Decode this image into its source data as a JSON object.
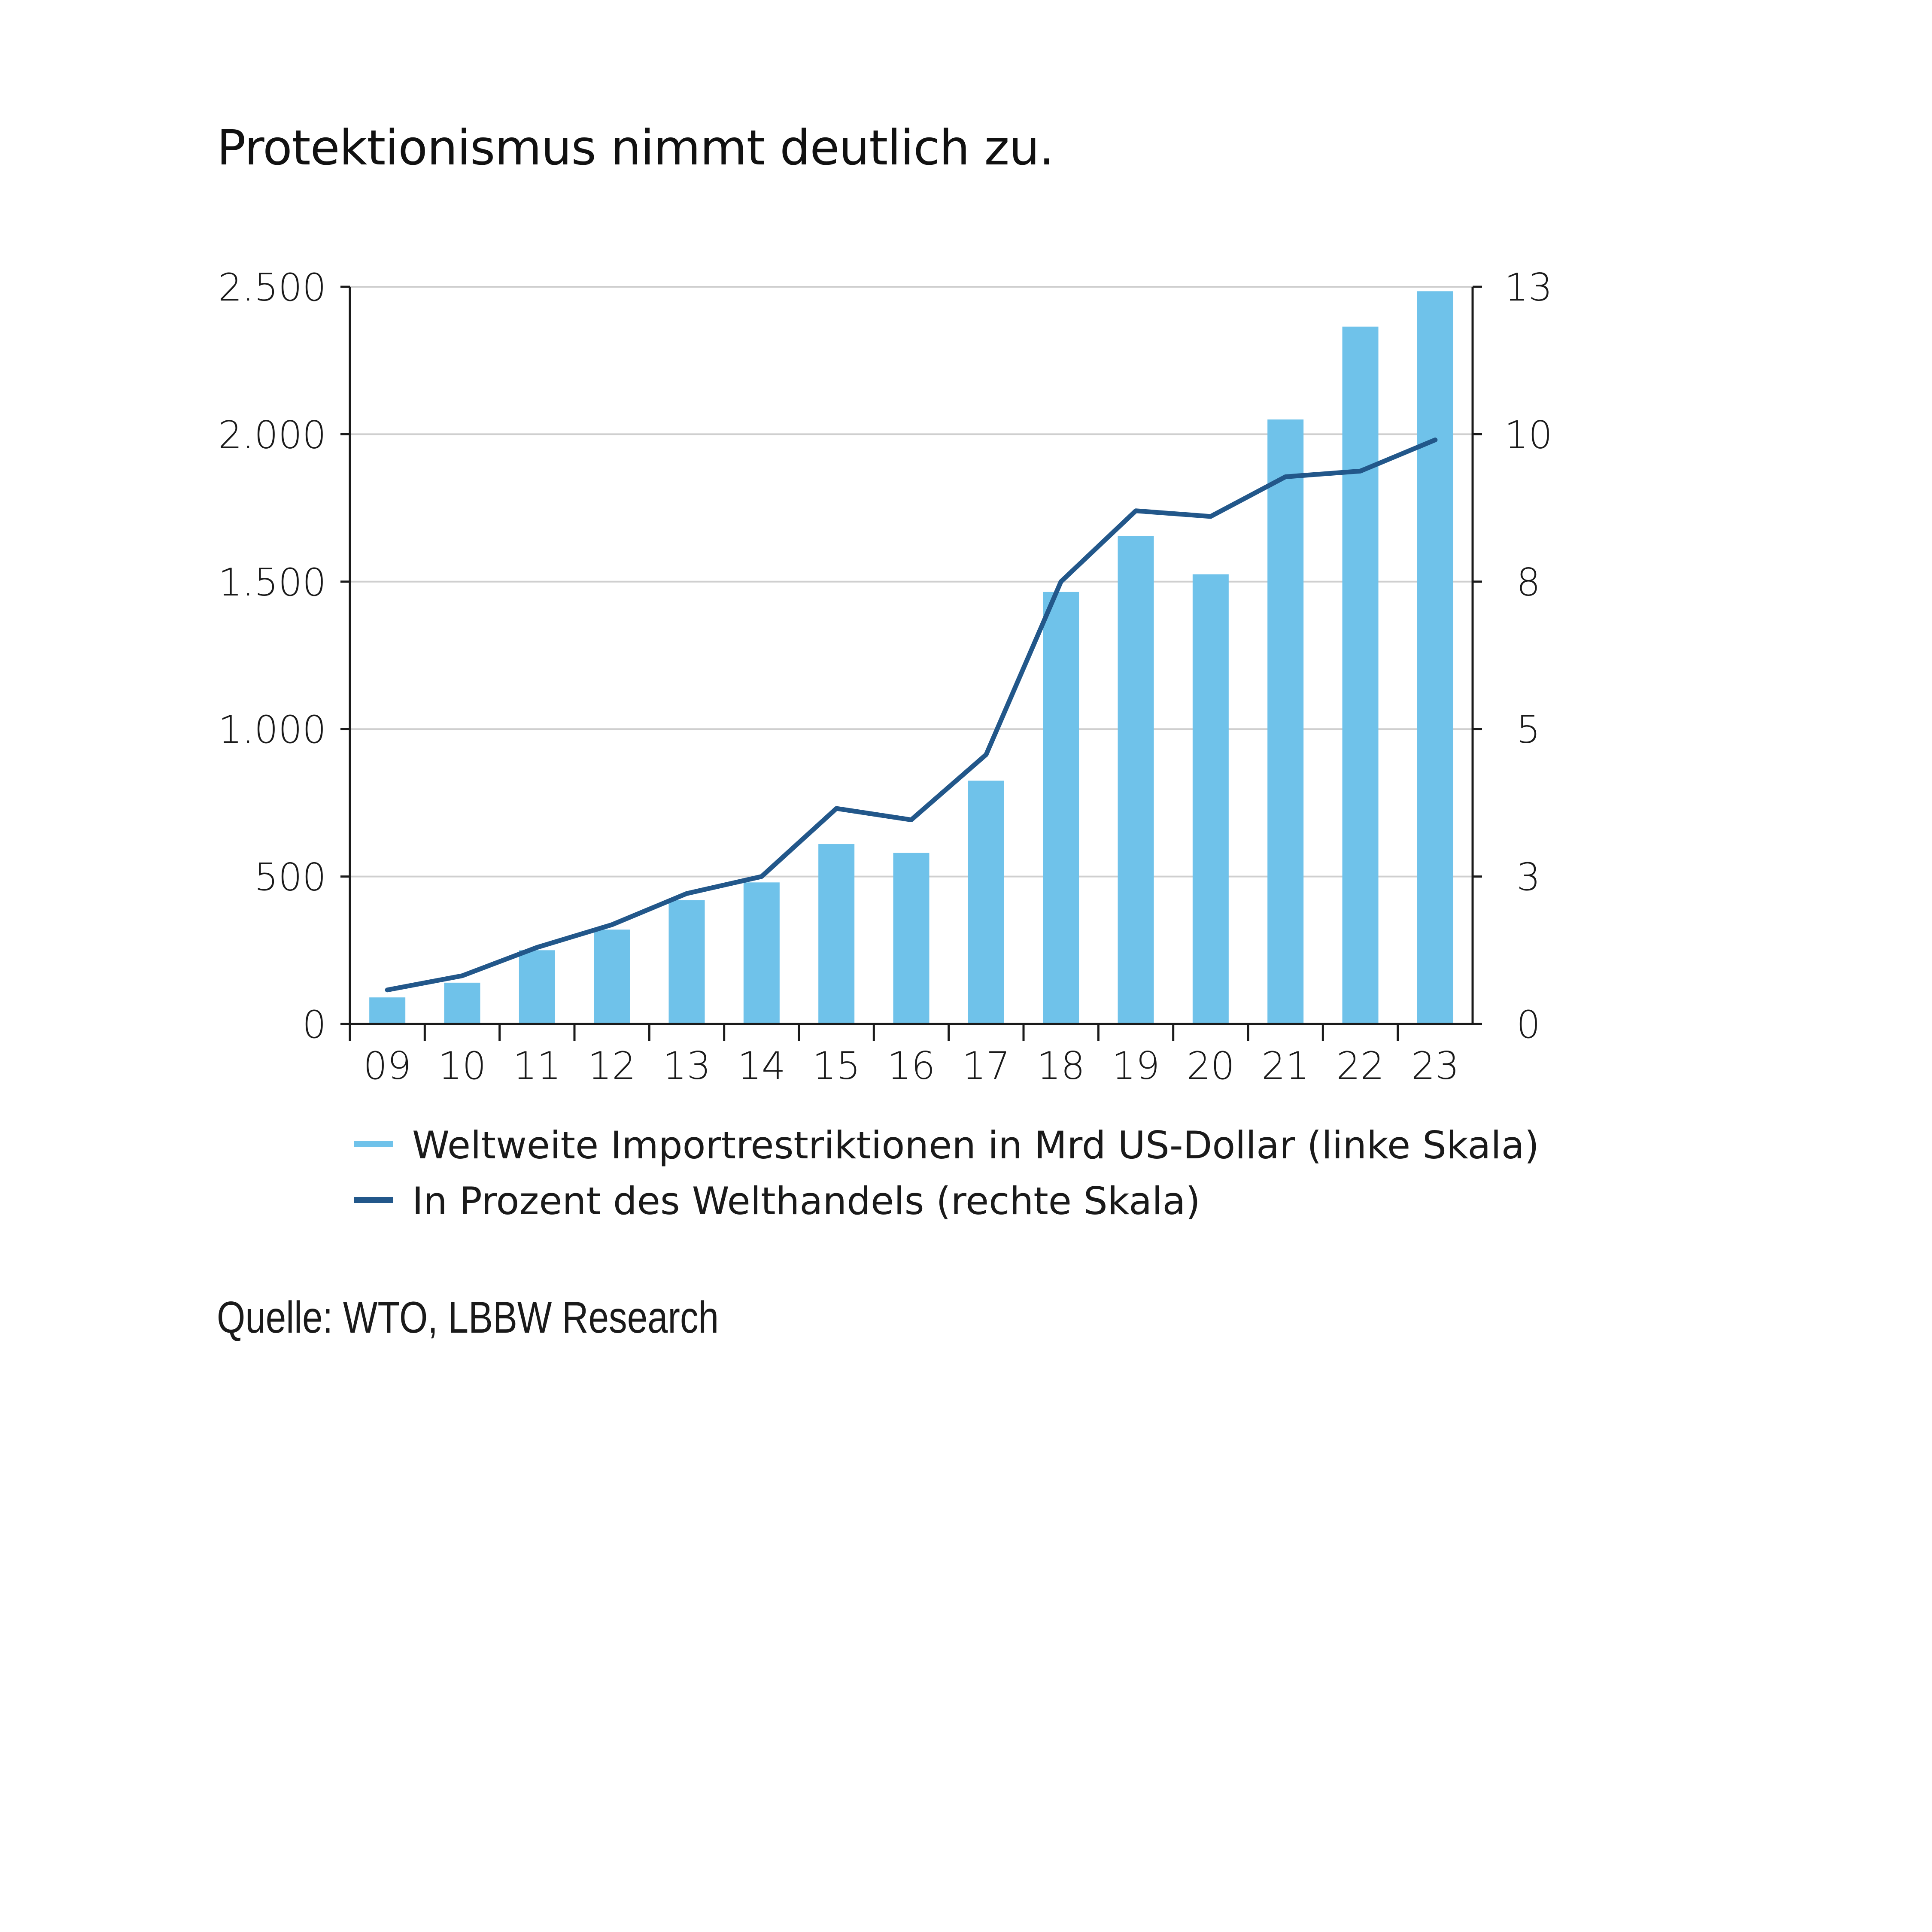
{
  "title": "Protektionismus nimmt deutlich zu.",
  "source": "Quelle: WTO, LBBW Research",
  "colors": {
    "bars": "#6fc2ea",
    "line": "#22578a",
    "grid": "#cfcfcf",
    "axis": "#1a1a1a"
  },
  "chart_data": {
    "type": "bar",
    "categories": [
      "09",
      "10",
      "11",
      "12",
      "13",
      "14",
      "15",
      "16",
      "17",
      "18",
      "19",
      "20",
      "21",
      "22",
      "23"
    ],
    "series": [
      {
        "name": "Weltweite Importrestriktionen in Mrd US-Dollar (linke Skala)",
        "type": "bar",
        "axis": "left",
        "values": [
          90,
          140,
          250,
          320,
          420,
          480,
          610,
          580,
          825,
          1465,
          1655,
          1525,
          2050,
          2365,
          2485
        ]
      },
      {
        "name": "In Prozent des Welthandels (rechte Skala)",
        "type": "line",
        "axis": "right",
        "values": [
          0.6,
          0.85,
          1.35,
          1.75,
          2.3,
          2.6,
          3.8,
          3.6,
          4.75,
          7.8,
          9.05,
          8.95,
          9.65,
          9.75,
          10.3
        ]
      }
    ],
    "y_left": {
      "ticks": [
        0,
        500,
        1000,
        1500,
        2000,
        2500
      ],
      "tick_labels": [
        "0",
        "500",
        "1.000",
        "1.500",
        "2.000",
        "2.500"
      ],
      "range": [
        0,
        2500
      ]
    },
    "y_right": {
      "ticks": [
        0,
        2.6,
        5.2,
        7.8,
        10.4,
        13
      ],
      "tick_labels": [
        "0",
        "3",
        "5",
        "8",
        "10",
        "13"
      ],
      "range": [
        0,
        13
      ]
    },
    "grid": true,
    "legend_position": "bottom"
  }
}
